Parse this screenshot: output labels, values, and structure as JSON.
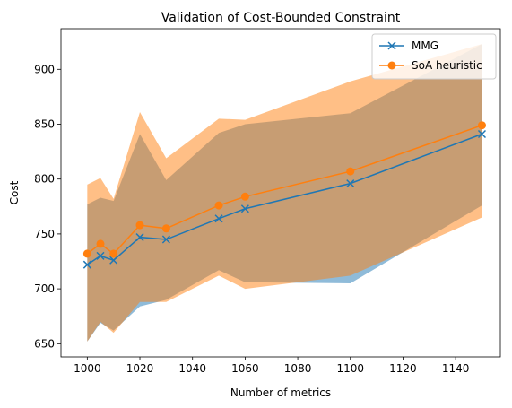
{
  "chart_data": {
    "type": "line",
    "title": "Validation of Cost-Bounded Constraint",
    "xlabel": "Number of metrics",
    "ylabel": "Cost",
    "xlim": [
      990,
      1157
    ],
    "ylim": [
      638,
      937
    ],
    "xticks": [
      1000,
      1020,
      1040,
      1060,
      1080,
      1100,
      1120,
      1140
    ],
    "yticks": [
      650,
      700,
      750,
      800,
      850,
      900
    ],
    "legend_position": "upper right",
    "x": [
      1000,
      1005,
      1010,
      1020,
      1030,
      1050,
      1060,
      1100,
      1150
    ],
    "series": [
      {
        "name": "MMG",
        "color": "#1f77b4",
        "marker": "x",
        "values": [
          722,
          730,
          726,
          747,
          745,
          764,
          773,
          796,
          841
        ],
        "band_upper": [
          777,
          783,
          780,
          841,
          799,
          842,
          850,
          860,
          923
        ],
        "band_lower": [
          652,
          669,
          662,
          684,
          690,
          717,
          706,
          705,
          776
        ]
      },
      {
        "name": "SoA heuristic",
        "color": "#ff7f0e",
        "marker": "o",
        "values": [
          732,
          741,
          732,
          758,
          755,
          776,
          784,
          807,
          849
        ],
        "band_upper": [
          795,
          801,
          782,
          861,
          819,
          855,
          854,
          889,
          923
        ],
        "band_lower": [
          652,
          670,
          660,
          688,
          688,
          712,
          700,
          712,
          765
        ]
      }
    ]
  }
}
